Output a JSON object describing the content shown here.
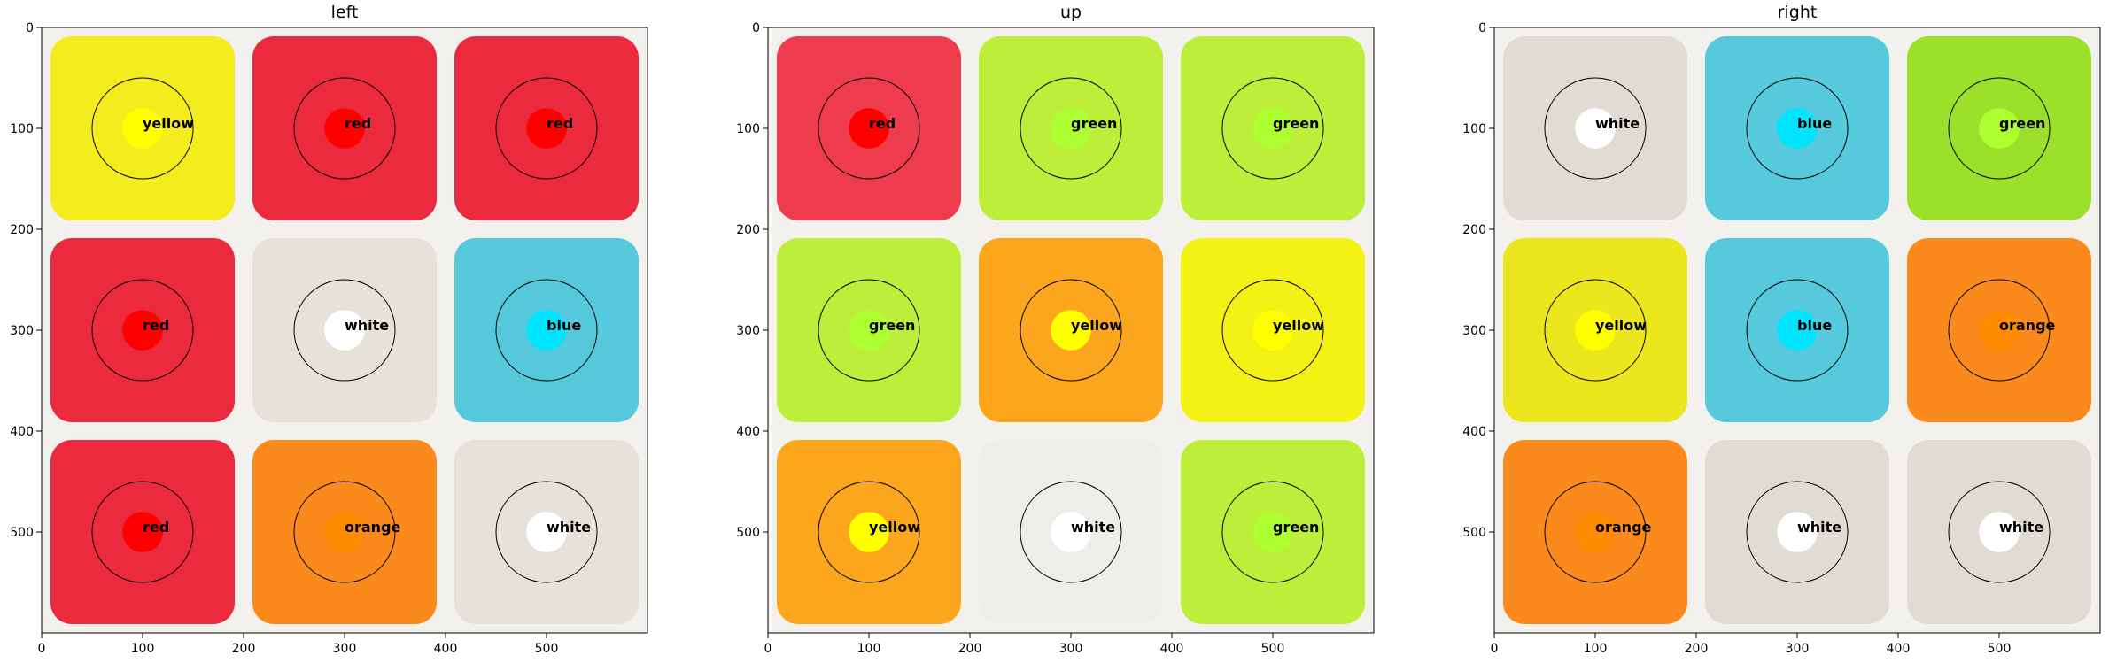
{
  "chart_data": [
    {
      "type": "heatmap",
      "title": "left",
      "xlim": [
        0,
        600
      ],
      "ylim": [
        600,
        0
      ],
      "xticks": [
        0,
        100,
        200,
        300,
        400,
        500
      ],
      "yticks": [
        0,
        100,
        200,
        300,
        400,
        500
      ],
      "grid": false,
      "cells": [
        {
          "row": 0,
          "col": 0,
          "label": "yellow",
          "color": "#f4ec1c"
        },
        {
          "row": 0,
          "col": 1,
          "label": "red",
          "color": "#ec2a3e"
        },
        {
          "row": 0,
          "col": 2,
          "label": "red",
          "color": "#ec2a3e"
        },
        {
          "row": 1,
          "col": 0,
          "label": "red",
          "color": "#ec2a3e"
        },
        {
          "row": 1,
          "col": 1,
          "label": "white",
          "color": "#e6e1d9"
        },
        {
          "row": 1,
          "col": 2,
          "label": "blue",
          "color": "#56c8dc"
        },
        {
          "row": 2,
          "col": 0,
          "label": "red",
          "color": "#ec2a3e"
        },
        {
          "row": 2,
          "col": 1,
          "label": "orange",
          "color": "#fb8a1c"
        },
        {
          "row": 2,
          "col": 2,
          "label": "white",
          "color": "#e6e1d9"
        }
      ]
    },
    {
      "type": "heatmap",
      "title": "up",
      "xlim": [
        0,
        600
      ],
      "ylim": [
        600,
        0
      ],
      "xticks": [
        0,
        100,
        200,
        300,
        400,
        500
      ],
      "yticks": [
        0,
        100,
        200,
        300,
        400,
        500
      ],
      "grid": false,
      "cells": [
        {
          "row": 0,
          "col": 0,
          "label": "red",
          "color": "#ef3b4e"
        },
        {
          "row": 0,
          "col": 1,
          "label": "green",
          "color": "#bdef3a"
        },
        {
          "row": 0,
          "col": 2,
          "label": "green",
          "color": "#bdef3a"
        },
        {
          "row": 1,
          "col": 0,
          "label": "green",
          "color": "#bdef3a"
        },
        {
          "row": 1,
          "col": 1,
          "label": "yellow",
          "color": "#fba61c"
        },
        {
          "row": 1,
          "col": 2,
          "label": "yellow",
          "color": "#f4f114"
        },
        {
          "row": 2,
          "col": 0,
          "label": "yellow",
          "color": "#fba61c"
        },
        {
          "row": 2,
          "col": 1,
          "label": "white",
          "color": "#efede9"
        },
        {
          "row": 2,
          "col": 2,
          "label": "green",
          "color": "#bdef3a"
        }
      ]
    },
    {
      "type": "heatmap",
      "title": "right",
      "xlim": [
        0,
        600
      ],
      "ylim": [
        600,
        0
      ],
      "xticks": [
        0,
        100,
        200,
        300,
        400,
        500
      ],
      "yticks": [
        0,
        100,
        200,
        300,
        400,
        500
      ],
      "grid": false,
      "cells": [
        {
          "row": 0,
          "col": 0,
          "label": "white",
          "color": "#e0dcd4"
        },
        {
          "row": 0,
          "col": 1,
          "label": "blue",
          "color": "#56c9dc"
        },
        {
          "row": 0,
          "col": 2,
          "label": "green",
          "color": "#9be02a"
        },
        {
          "row": 1,
          "col": 0,
          "label": "yellow",
          "color": "#ece71c"
        },
        {
          "row": 1,
          "col": 1,
          "label": "blue",
          "color": "#56c9dc"
        },
        {
          "row": 1,
          "col": 2,
          "label": "orange",
          "color": "#fb8a1c"
        },
        {
          "row": 2,
          "col": 0,
          "label": "orange",
          "color": "#fb8a1c"
        },
        {
          "row": 2,
          "col": 1,
          "label": "white",
          "color": "#e0dcd4"
        },
        {
          "row": 2,
          "col": 2,
          "label": "white",
          "color": "#e0dcd4"
        }
      ]
    }
  ],
  "colors": {
    "marker": {
      "yellow": "#ffff00",
      "red": "#ff0000",
      "white": "#ffffff",
      "blue": "#00e5ff",
      "orange": "#ff8c00",
      "green": "#adff2f"
    }
  }
}
